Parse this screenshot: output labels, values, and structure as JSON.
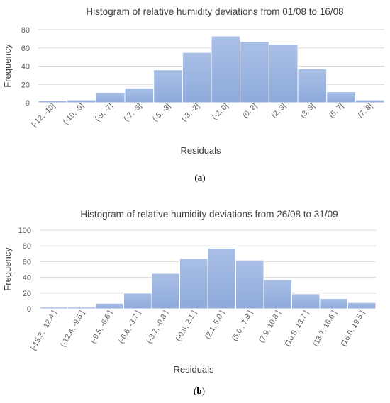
{
  "bar_color": "#8eaadb",
  "bar_color_top": "#a9bfe6",
  "chart_data": [
    {
      "type": "bar",
      "title": "Histogram of relative humidity deviations from 01/08 to 16/08",
      "xlabel": "Residuals",
      "ylabel": "Frequency",
      "ylim": [
        0,
        80
      ],
      "yticks": [
        0,
        20,
        40,
        60,
        80
      ],
      "categories": [
        "[-12, -10]",
        "(-10, -9]",
        "(-9, -7]",
        "(-7, -5]",
        "(-5, -3]",
        "(-3, -2]",
        "(-2, 0]",
        "(0, 2]",
        "(2, 3]",
        "(3, 5]",
        "(5, 7]",
        "(7, 8]"
      ],
      "values": [
        2,
        3,
        11,
        16,
        36,
        55,
        73,
        67,
        64,
        37,
        12,
        3
      ],
      "grid": true,
      "caption": {
        "open": "(",
        "label": "a",
        "close": ")"
      }
    },
    {
      "type": "bar",
      "title": "Histogram of relative humidity deviations from 26/08 to 31/09",
      "xlabel": "Residuals",
      "ylabel": "Frequency",
      "ylim": [
        0,
        100
      ],
      "yticks": [
        0,
        20,
        40,
        60,
        80,
        100
      ],
      "categories": [
        "[-15.3, -12.4 ]",
        "(-12.4, -9.5 ]",
        "(-9.5, -6.6 ]",
        "(-6.6, -3.7 ]",
        "(-3.7, -0.8 ]",
        "(-0.8, 2.1 ]",
        "(2.1, 5.0 ]",
        "(5.0 , 7.9 ]",
        "(7.9, 10.8 ]",
        "(10.8, 13.7 ]",
        "(13.7, 16.6 ]",
        "(16.6, 19.5 ]"
      ],
      "values": [
        2,
        2,
        7,
        20,
        45,
        64,
        77,
        62,
        37,
        19,
        13,
        8
      ],
      "grid": true,
      "caption": {
        "open": "(",
        "label": "b",
        "close": ")"
      }
    }
  ]
}
